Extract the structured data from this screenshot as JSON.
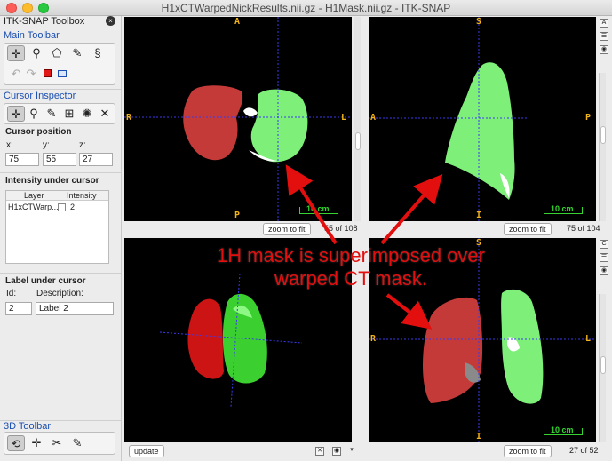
{
  "window": {
    "title": "H1xCTWarpedNickResults.nii.gz - H1Mask.nii.gz - ITK-SNAP"
  },
  "sidebar": {
    "app_title": "ITK-SNAP Toolbox",
    "main_toolbar_title": "Main Toolbar",
    "cursor_inspector_title": "Cursor Inspector",
    "cursor_position_title": "Cursor position",
    "x_label": "x:",
    "y_label": "y:",
    "z_label": "z:",
    "x_value": "75",
    "y_value": "55",
    "z_value": "27",
    "intensity_title": "Intensity under cursor",
    "table": {
      "col_layer": "Layer",
      "col_intensity": "Intensity",
      "row_layer": "H1xCTWarp...",
      "row_intensity": "2"
    },
    "label_title": "Label under cursor",
    "id_label": "Id:",
    "desc_label": "Description:",
    "id_value": "2",
    "desc_value": "Label 2",
    "toolbar_3d_title": "3D Toolbar"
  },
  "views": {
    "axial": {
      "top": "A",
      "bottom": "P",
      "left": "R",
      "right": "L",
      "zoom": "zoom to fit",
      "slice": "55 of 108",
      "scale": "10 cm"
    },
    "sagittal": {
      "top": "S",
      "bottom": "I",
      "left": "A",
      "right": "P",
      "zoom": "zoom to fit",
      "slice": "75 of 104",
      "scale": "10 cm"
    },
    "coronal": {
      "top": "S",
      "bottom": "I",
      "left": "R",
      "right": "L",
      "zoom": "zoom to fit",
      "slice": "27 of 52",
      "scale": "10 cm"
    },
    "render3d": {
      "update": "update"
    }
  },
  "annotation": {
    "line1": "1H mask is superimposed over",
    "line2": "warped CT mask."
  },
  "colors": {
    "red_mask": "#c43a38",
    "green_mask": "#7ef07a",
    "crosshair": "#3a3af0",
    "orient_label": "#f2b21b",
    "annotation": "#e30e0e"
  }
}
